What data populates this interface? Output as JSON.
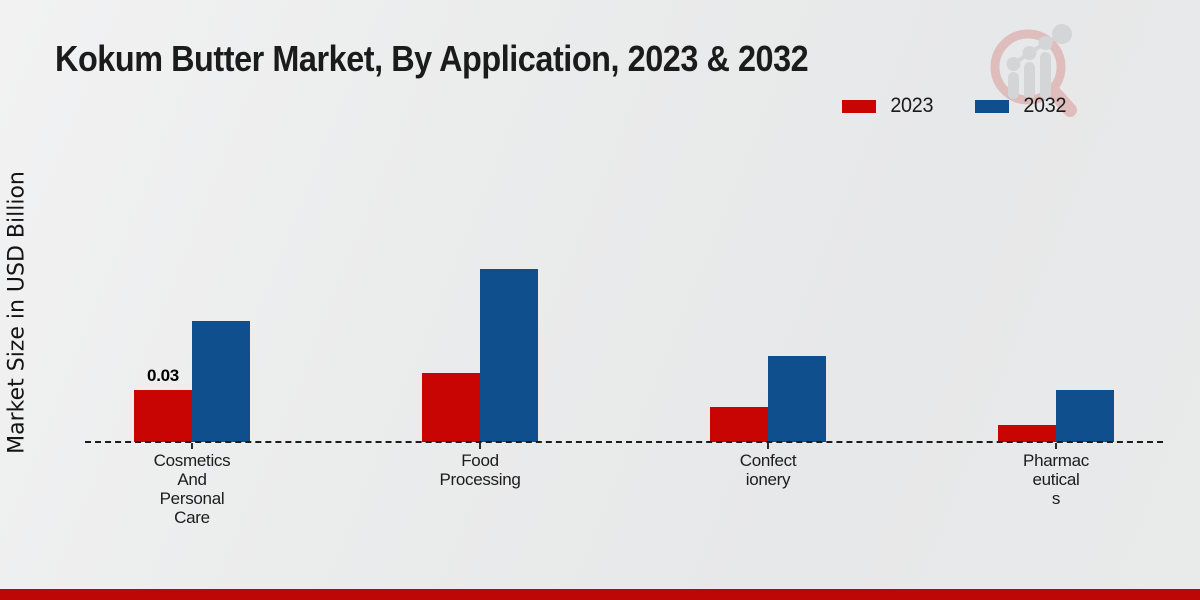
{
  "chart_data": {
    "type": "bar",
    "title": "Kokum Butter Market, By Application, 2023 & 2032",
    "ylabel": "Market Size in USD Billion",
    "xlabel": "",
    "categories": [
      "Cosmetics And Personal Care",
      "Food Processing",
      "Confectionery",
      "Pharmaceuticals"
    ],
    "tick_label_lines": [
      [
        "Cosmetics",
        "And",
        "Personal",
        "Care"
      ],
      [
        "Food",
        "Processing"
      ],
      [
        "Confect",
        "ionery"
      ],
      [
        "Pharmac",
        "eutical",
        "s"
      ]
    ],
    "series": [
      {
        "name": "2023",
        "color": "#c90504",
        "values": [
          0.03,
          0.04,
          0.02,
          0.01
        ]
      },
      {
        "name": "2032",
        "color": "#0f4f8e",
        "values": [
          0.07,
          0.1,
          0.05,
          0.03
        ]
      }
    ],
    "bar_value_labels": [
      {
        "series": "2023",
        "category_index": 0,
        "text": "0.03"
      }
    ],
    "ylim": [
      0,
      0.17
    ],
    "grid": false,
    "baseline_style": "dashed",
    "legend_position": "top-right"
  },
  "colors": {
    "series_2023": "#c90504",
    "series_2032": "#0f4f8e",
    "footer_bar": "#bd0606",
    "background": "#e9eaea",
    "watermark_ring": "#dc9a9a",
    "watermark_gray": "#c6c7ca"
  },
  "footer": {}
}
